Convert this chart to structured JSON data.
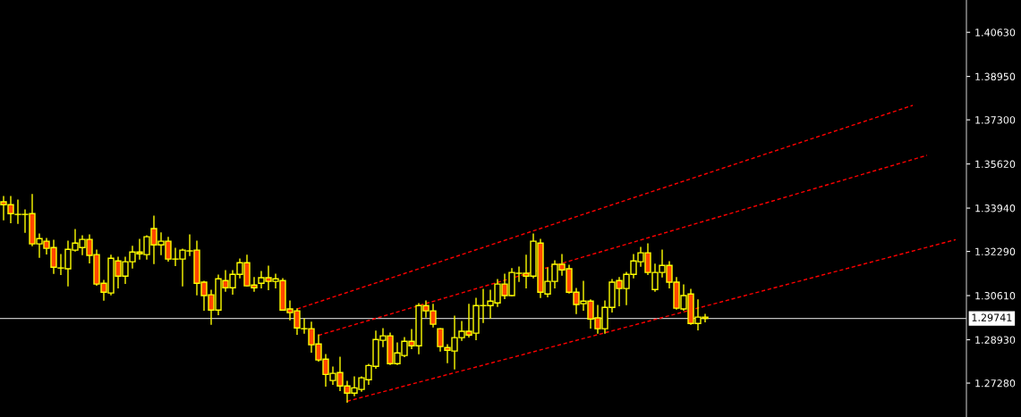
{
  "chart_data": {
    "type": "candlestick",
    "categories": [
      null,
      null,
      null,
      null,
      null,
      null,
      null,
      null,
      null,
      null,
      null,
      null,
      null,
      null,
      null,
      null,
      null,
      null,
      null,
      null,
      null,
      null,
      null,
      null,
      null,
      null,
      null,
      null,
      null,
      null,
      null,
      null,
      null,
      null,
      null,
      null,
      null,
      null,
      null,
      null,
      null,
      null,
      null,
      null,
      null,
      null,
      null,
      null,
      null,
      null,
      null,
      null,
      null,
      null,
      null,
      null,
      null,
      null,
      null,
      null,
      null,
      null,
      null,
      null,
      null,
      null,
      null,
      null,
      null,
      null,
      null,
      null,
      null,
      null,
      null,
      null,
      null,
      null,
      null,
      null,
      null,
      null,
      null,
      null,
      null,
      null,
      null,
      null,
      null,
      null,
      null,
      null,
      null,
      null,
      null,
      null,
      null,
      null,
      null,
      null,
      null,
      null,
      null,
      null,
      null,
      null,
      null,
      null,
      null,
      null,
      null,
      null,
      null,
      null,
      null,
      null,
      null,
      null,
      null,
      null,
      null,
      null,
      null,
      null,
      null,
      null,
      null,
      null,
      null,
      null,
      null,
      null,
      null,
      null,
      null
    ],
    "ohlc": [
      [
        1.3418,
        1.3438,
        1.335,
        1.3407
      ],
      [
        1.3407,
        1.3438,
        1.3339,
        1.3373
      ],
      [
        1.337,
        1.3424,
        1.3336,
        1.337
      ],
      [
        1.337,
        1.3387,
        1.3302,
        1.337
      ],
      [
        1.3373,
        1.3445,
        1.3251,
        1.3258
      ],
      [
        1.3258,
        1.3295,
        1.3207,
        1.3278
      ],
      [
        1.3268,
        1.3278,
        1.322,
        1.3241
      ],
      [
        1.3244,
        1.3271,
        1.3146,
        1.3169
      ],
      [
        1.3166,
        1.3217,
        1.3142,
        1.3166
      ],
      [
        1.3163,
        1.3268,
        1.3098,
        1.3237
      ],
      [
        1.3234,
        1.3312,
        1.3231,
        1.3261
      ],
      [
        1.3244,
        1.3288,
        1.3217,
        1.3275
      ],
      [
        1.3275,
        1.3292,
        1.3186,
        1.3214
      ],
      [
        1.3217,
        1.3234,
        1.3101,
        1.3105
      ],
      [
        1.3108,
        1.3118,
        1.3044,
        1.3074
      ],
      [
        1.3071,
        1.3214,
        1.3064,
        1.3203
      ],
      [
        1.3193,
        1.3207,
        1.3091,
        1.3135
      ],
      [
        1.3135,
        1.3207,
        1.3108,
        1.319
      ],
      [
        1.319,
        1.3248,
        1.3166,
        1.3227
      ],
      [
        1.3227,
        1.3275,
        1.32,
        1.322
      ],
      [
        1.3217,
        1.3288,
        1.32,
        1.3285
      ],
      [
        1.3316,
        1.3363,
        1.3183,
        1.3254
      ],
      [
        1.3254,
        1.3299,
        1.3217,
        1.3268
      ],
      [
        1.3268,
        1.3282,
        1.3193,
        1.32
      ],
      [
        1.32,
        1.3241,
        1.3176,
        1.32
      ],
      [
        1.32,
        1.3237,
        1.3098,
        1.3234
      ],
      [
        1.3231,
        1.3292,
        1.3214,
        1.3231
      ],
      [
        1.3234,
        1.3268,
        1.3064,
        1.3108
      ],
      [
        1.3112,
        1.3115,
        1.3006,
        1.3061
      ],
      [
        1.3064,
        1.3081,
        1.2952,
        1.3006
      ],
      [
        1.3006,
        1.3139,
        1.2989,
        1.3125
      ],
      [
        1.3118,
        1.3156,
        1.3078,
        1.3091
      ],
      [
        1.3091,
        1.3156,
        1.3067,
        1.3142
      ],
      [
        1.3142,
        1.32,
        1.3129,
        1.3186
      ],
      [
        1.3186,
        1.3214,
        1.3098,
        1.3098
      ],
      [
        1.3101,
        1.3129,
        1.3078,
        1.3091
      ],
      [
        1.3108,
        1.3152,
        1.3091,
        1.3129
      ],
      [
        1.3129,
        1.3173,
        1.3084,
        1.3115
      ],
      [
        1.3115,
        1.3142,
        1.3091,
        1.3125
      ],
      [
        1.3118,
        1.3125,
        1.3006,
        1.3006
      ],
      [
        1.301,
        1.304,
        1.2969,
        1.2996
      ],
      [
        1.3003,
        1.301,
        1.2914,
        1.2938
      ],
      [
        1.2935,
        1.2972,
        1.2918,
        1.2935
      ],
      [
        1.2935,
        1.2959,
        1.2846,
        1.2874
      ],
      [
        1.2877,
        1.2911,
        1.2812,
        1.2816
      ],
      [
        1.2819,
        1.2836,
        1.2717,
        1.2761
      ],
      [
        1.2738,
        1.2789,
        1.2724,
        1.2765
      ],
      [
        1.2768,
        1.2826,
        1.27,
        1.2717
      ],
      [
        1.2717,
        1.2734,
        1.2656,
        1.269
      ],
      [
        1.269,
        1.2751,
        1.268,
        1.271
      ],
      [
        1.2704,
        1.2751,
        1.2697,
        1.2748
      ],
      [
        1.2741,
        1.2799,
        1.2724,
        1.2795
      ],
      [
        1.2792,
        1.2925,
        1.2785,
        1.2894
      ],
      [
        1.2891,
        1.2935,
        1.2867,
        1.2908
      ],
      [
        1.2908,
        1.2918,
        1.2799,
        1.2802
      ],
      [
        1.2802,
        1.288,
        1.2799,
        1.2843
      ],
      [
        1.2833,
        1.2901,
        1.2829,
        1.2887
      ],
      [
        1.2887,
        1.2931,
        1.286,
        1.287
      ],
      [
        1.287,
        1.303,
        1.284,
        1.3023
      ],
      [
        1.3023,
        1.304,
        1.2979,
        1.3003
      ],
      [
        1.3003,
        1.3027,
        1.2942,
        1.2952
      ],
      [
        1.2935,
        1.2935,
        1.285,
        1.2867
      ],
      [
        1.2863,
        1.2874,
        1.2806,
        1.2853
      ],
      [
        1.285,
        1.2982,
        1.2782,
        1.2901
      ],
      [
        1.2901,
        1.2962,
        1.2891,
        1.2925
      ],
      [
        1.2925,
        1.3027,
        1.2904,
        1.2911
      ],
      [
        1.2918,
        1.305,
        1.2894,
        1.3023
      ],
      [
        1.3023,
        1.3084,
        1.2959,
        1.3023
      ],
      [
        1.3023,
        1.3081,
        1.2976,
        1.304
      ],
      [
        1.3033,
        1.3122,
        1.302,
        1.3105
      ],
      [
        1.3105,
        1.3142,
        1.305,
        1.3061
      ],
      [
        1.3061,
        1.3163,
        1.3061,
        1.3149
      ],
      [
        1.3146,
        1.3169,
        1.3115,
        1.3146
      ],
      [
        1.3146,
        1.3214,
        1.3091,
        1.3135
      ],
      [
        1.3135,
        1.3295,
        1.3129,
        1.3268
      ],
      [
        1.3261,
        1.3275,
        1.3054,
        1.3074
      ],
      [
        1.3067,
        1.3166,
        1.3057,
        1.3115
      ],
      [
        1.3115,
        1.3193,
        1.3091,
        1.318
      ],
      [
        1.318,
        1.3217,
        1.3139,
        1.3159
      ],
      [
        1.3163,
        1.3176,
        1.3071,
        1.3074
      ],
      [
        1.3074,
        1.3088,
        1.2993,
        1.3027
      ],
      [
        1.303,
        1.3115,
        1.3006,
        1.304
      ],
      [
        1.304,
        1.3044,
        1.2938,
        1.2972
      ],
      [
        1.2976,
        1.3023,
        1.2918,
        1.2935
      ],
      [
        1.2935,
        1.304,
        1.2918,
        1.3016
      ],
      [
        1.3016,
        1.3122,
        1.2999,
        1.3112
      ],
      [
        1.3118,
        1.3129,
        1.3023,
        1.3088
      ],
      [
        1.3088,
        1.3149,
        1.3027,
        1.3142
      ],
      [
        1.3142,
        1.3217,
        1.3129,
        1.3193
      ],
      [
        1.319,
        1.3244,
        1.3173,
        1.3224
      ],
      [
        1.3224,
        1.3258,
        1.3142,
        1.3149
      ],
      [
        1.3084,
        1.318,
        1.3078,
        1.3149
      ],
      [
        1.3149,
        1.3234,
        1.3132,
        1.3176
      ],
      [
        1.3176,
        1.319,
        1.3091,
        1.3112
      ],
      [
        1.3112,
        1.3129,
        1.301,
        1.3013
      ],
      [
        1.301,
        1.3101,
        1.3006,
        1.3061
      ],
      [
        1.3067,
        1.3084,
        1.2952,
        1.2955
      ],
      [
        1.2955,
        1.3044,
        1.2931,
        1.2979
      ],
      [
        1.2979,
        1.2989,
        1.2962,
        1.2974
      ],
      null,
      null,
      null,
      null,
      null,
      null,
      null,
      null,
      null,
      null,
      null,
      null,
      null,
      null,
      null,
      null,
      null,
      null,
      null,
      null,
      null,
      null,
      null,
      null,
      null,
      null,
      null,
      null,
      null,
      null,
      null,
      null,
      null,
      null,
      null,
      null
    ],
    "series": [
      {
        "type": "line",
        "color": "#ff0000",
        "values": [
          null,
          null,
          null,
          null,
          null,
          null,
          null,
          null,
          null,
          null,
          null,
          null,
          null,
          null,
          null,
          null,
          null,
          null,
          null,
          null,
          null,
          null,
          null,
          null,
          null,
          null,
          null,
          null,
          null,
          null,
          null,
          null,
          null,
          null,
          null,
          null,
          null,
          null,
          null,
          null,
          null,
          1.301,
          null,
          null,
          null,
          null,
          null,
          null,
          null,
          null,
          null,
          null,
          null,
          null,
          null,
          null,
          null,
          null,
          null,
          null,
          null,
          null,
          null,
          null,
          null,
          null,
          null,
          null,
          null,
          null,
          null,
          null,
          null,
          null,
          null,
          null,
          null,
          null,
          null,
          null,
          null,
          null,
          null,
          null,
          null,
          null,
          null,
          null,
          null,
          null,
          null,
          null,
          null,
          null,
          null,
          null,
          null,
          null,
          null,
          null,
          null,
          null,
          null,
          null,
          null,
          null,
          null,
          null,
          null,
          null,
          null,
          null,
          null,
          null,
          null,
          null,
          null,
          null,
          null,
          null,
          null,
          null,
          null,
          null,
          null,
          null,
          null,
          1.3785,
          null,
          null,
          null,
          null,
          null,
          null,
          null
        ]
      },
      {
        "type": "line",
        "color": "#ff0000",
        "values": [
          null,
          null,
          null,
          null,
          null,
          null,
          null,
          null,
          null,
          null,
          null,
          null,
          null,
          null,
          null,
          null,
          null,
          null,
          null,
          null,
          null,
          null,
          null,
          null,
          null,
          null,
          null,
          null,
          null,
          null,
          null,
          null,
          null,
          null,
          null,
          null,
          null,
          null,
          null,
          null,
          null,
          null,
          null,
          null,
          1.291,
          null,
          null,
          null,
          null,
          null,
          null,
          null,
          null,
          null,
          null,
          null,
          null,
          null,
          null,
          null,
          null,
          null,
          null,
          null,
          null,
          null,
          null,
          null,
          null,
          null,
          null,
          null,
          null,
          null,
          null,
          null,
          null,
          null,
          null,
          null,
          null,
          null,
          null,
          null,
          null,
          null,
          null,
          null,
          null,
          null,
          null,
          null,
          null,
          null,
          null,
          null,
          null,
          null,
          null,
          null,
          null,
          null,
          null,
          null,
          null,
          null,
          null,
          null,
          null,
          null,
          null,
          null,
          null,
          null,
          null,
          null,
          null,
          null,
          null,
          null,
          null,
          null,
          null,
          null,
          null,
          null,
          null,
          null,
          null,
          1.3595,
          null,
          null,
          null,
          null,
          null
        ]
      },
      {
        "type": "line",
        "color": "#ff0000",
        "values": [
          null,
          null,
          null,
          null,
          null,
          null,
          null,
          null,
          null,
          null,
          null,
          null,
          null,
          null,
          null,
          null,
          null,
          null,
          null,
          null,
          null,
          null,
          null,
          null,
          null,
          null,
          null,
          null,
          null,
          null,
          null,
          null,
          null,
          null,
          null,
          null,
          null,
          null,
          null,
          null,
          null,
          null,
          null,
          null,
          null,
          null,
          null,
          null,
          1.2659,
          null,
          null,
          null,
          null,
          null,
          null,
          null,
          null,
          null,
          null,
          null,
          null,
          null,
          null,
          null,
          null,
          null,
          null,
          null,
          null,
          null,
          null,
          null,
          null,
          null,
          null,
          null,
          null,
          null,
          null,
          null,
          null,
          null,
          null,
          null,
          null,
          null,
          null,
          null,
          null,
          null,
          null,
          null,
          null,
          null,
          null,
          null,
          null,
          null,
          null,
          null,
          null,
          null,
          null,
          null,
          null,
          null,
          null,
          null,
          null,
          null,
          null,
          null,
          null,
          null,
          null,
          null,
          null,
          null,
          null,
          null,
          null,
          null,
          null,
          null,
          null,
          null,
          null,
          null,
          null,
          null,
          null,
          null,
          null,
          1.3274,
          null
        ]
      }
    ],
    "line_style": "dashed",
    "ylim": [
      1.2599,
      1.4186
    ],
    "yticks": [
      {
        "value": 1.4063,
        "label": "1.40630"
      },
      {
        "value": 1.3895,
        "label": "1.38950"
      },
      {
        "value": 1.373,
        "label": "1.37300"
      },
      {
        "value": 1.3562,
        "label": "1.35620"
      },
      {
        "value": 1.3394,
        "label": "1.33940"
      },
      {
        "value": 1.3229,
        "label": "1.32290"
      },
      {
        "value": 1.3061,
        "label": "1.30610"
      },
      {
        "value": 1.2893,
        "label": "1.28930"
      },
      {
        "value": 1.2728,
        "label": "1.27280"
      }
    ],
    "ref_lines": [
      {
        "axis": "y",
        "value": 1.29741,
        "label": "1.29741",
        "color": "#c0c0c0"
      }
    ],
    "tick_labels": "y"
  }
}
